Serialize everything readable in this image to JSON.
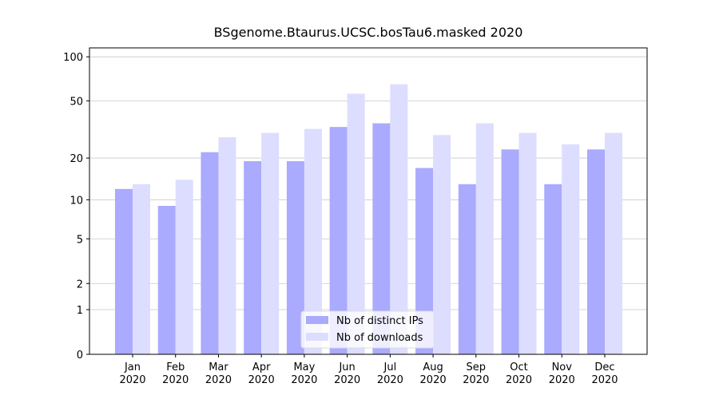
{
  "chart_data": {
    "type": "bar",
    "title": "BSgenome.Btaurus.UCSC.bosTau6.masked 2020",
    "scale": "log1p",
    "categories": [
      "Jan\n2020",
      "Feb\n2020",
      "Mar\n2020",
      "Apr\n2020",
      "May\n2020",
      "Jun\n2020",
      "Jul\n2020",
      "Aug\n2020",
      "Sep\n2020",
      "Oct\n2020",
      "Nov\n2020",
      "Dec\n2020"
    ],
    "series": [
      {
        "name": "Nb of distinct IPs",
        "color": "#aaaaff",
        "values": [
          12,
          9,
          22,
          19,
          19,
          33,
          35,
          17,
          13,
          23,
          13,
          23
        ]
      },
      {
        "name": "Nb of downloads",
        "color": "#ddddff",
        "values": [
          13,
          14,
          28,
          30,
          32,
          56,
          65,
          29,
          35,
          30,
          25,
          30
        ]
      }
    ],
    "ylim": [
      0,
      115
    ],
    "yticks": [
      0,
      1,
      2,
      5,
      10,
      20,
      50,
      100
    ],
    "grid": true,
    "legend": "lower center"
  }
}
